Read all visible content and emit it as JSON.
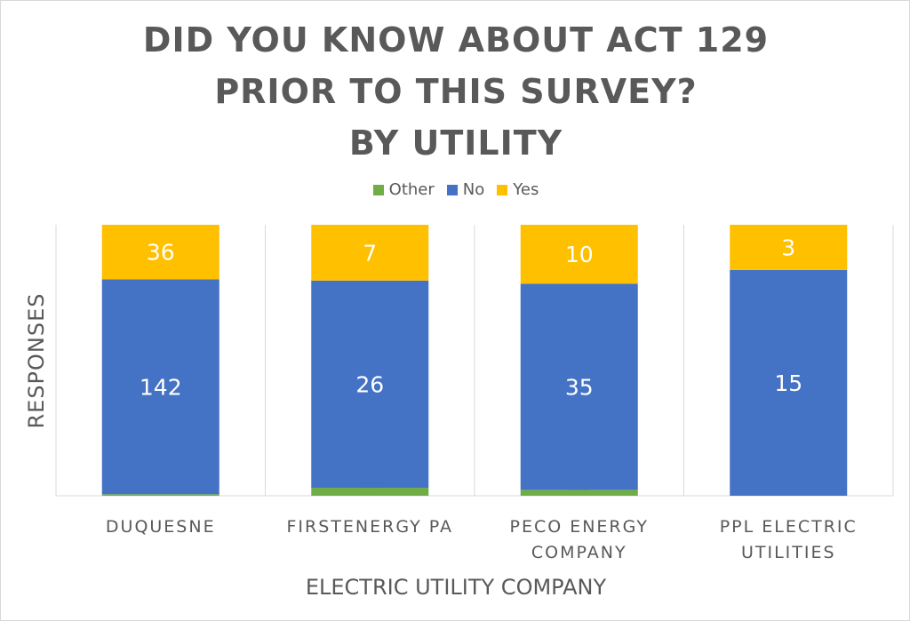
{
  "chart_data": {
    "type": "bar",
    "stacked": true,
    "normalized_percent": true,
    "title_lines": [
      "DID YOU KNOW ABOUT ACT 129",
      "PRIOR TO THIS SURVEY?",
      "BY UTILITY"
    ],
    "xlabel": "ELECTRIC UTILITY COMPANY",
    "ylabel": "RESPONSES",
    "categories": [
      [
        "DUQUESNE"
      ],
      [
        "FIRSTENERGY PA"
      ],
      [
        "PECO ENERGY",
        "COMPANY"
      ],
      [
        "PPL ELECTRIC",
        "UTILITIES"
      ]
    ],
    "series": [
      {
        "name": "Other",
        "color": "#70ad47",
        "values": [
          1,
          1,
          1,
          0
        ]
      },
      {
        "name": "No",
        "color": "#4472c4",
        "values": [
          142,
          26,
          35,
          15
        ]
      },
      {
        "name": "Yes",
        "color": "#ffc000",
        "values": [
          36,
          7,
          10,
          3
        ]
      }
    ],
    "legend_position": "top",
    "gridlines": "vertical"
  }
}
